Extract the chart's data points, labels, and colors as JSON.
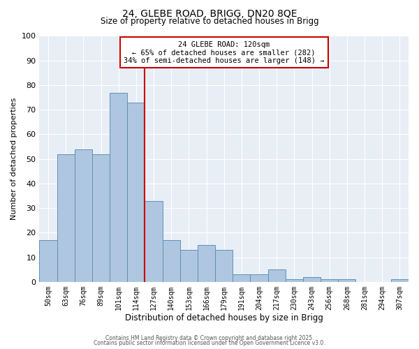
{
  "title_line1": "24, GLEBE ROAD, BRIGG, DN20 8QE",
  "title_line2": "Size of property relative to detached houses in Brigg",
  "xlabel": "Distribution of detached houses by size in Brigg",
  "ylabel": "Number of detached properties",
  "categories": [
    "50sqm",
    "63sqm",
    "76sqm",
    "89sqm",
    "101sqm",
    "114sqm",
    "127sqm",
    "140sqm",
    "153sqm",
    "166sqm",
    "179sqm",
    "191sqm",
    "204sqm",
    "217sqm",
    "230sqm",
    "243sqm",
    "256sqm",
    "268sqm",
    "281sqm",
    "294sqm",
    "307sqm"
  ],
  "values": [
    17,
    52,
    54,
    52,
    77,
    73,
    33,
    17,
    13,
    15,
    13,
    3,
    3,
    5,
    1,
    2,
    1,
    1,
    0,
    0,
    1
  ],
  "bar_color": "#aec6df",
  "bar_edge_color": "#6090b8",
  "vline_color": "#cc0000",
  "annotation_title": "24 GLEBE ROAD: 120sqm",
  "annotation_line2": "← 65% of detached houses are smaller (282)",
  "annotation_line3": "34% of semi-detached houses are larger (148) →",
  "annotation_box_color": "#ffffff",
  "annotation_box_edge": "#cc0000",
  "ylim": [
    0,
    100
  ],
  "yticks": [
    0,
    10,
    20,
    30,
    40,
    50,
    60,
    70,
    80,
    90,
    100
  ],
  "background_color": "#e8eef6",
  "grid_color": "#ffffff",
  "footer_line1": "Contains HM Land Registry data © Crown copyright and database right 2025.",
  "footer_line2": "Contains public sector information licensed under the Open Government Licence v3.0."
}
